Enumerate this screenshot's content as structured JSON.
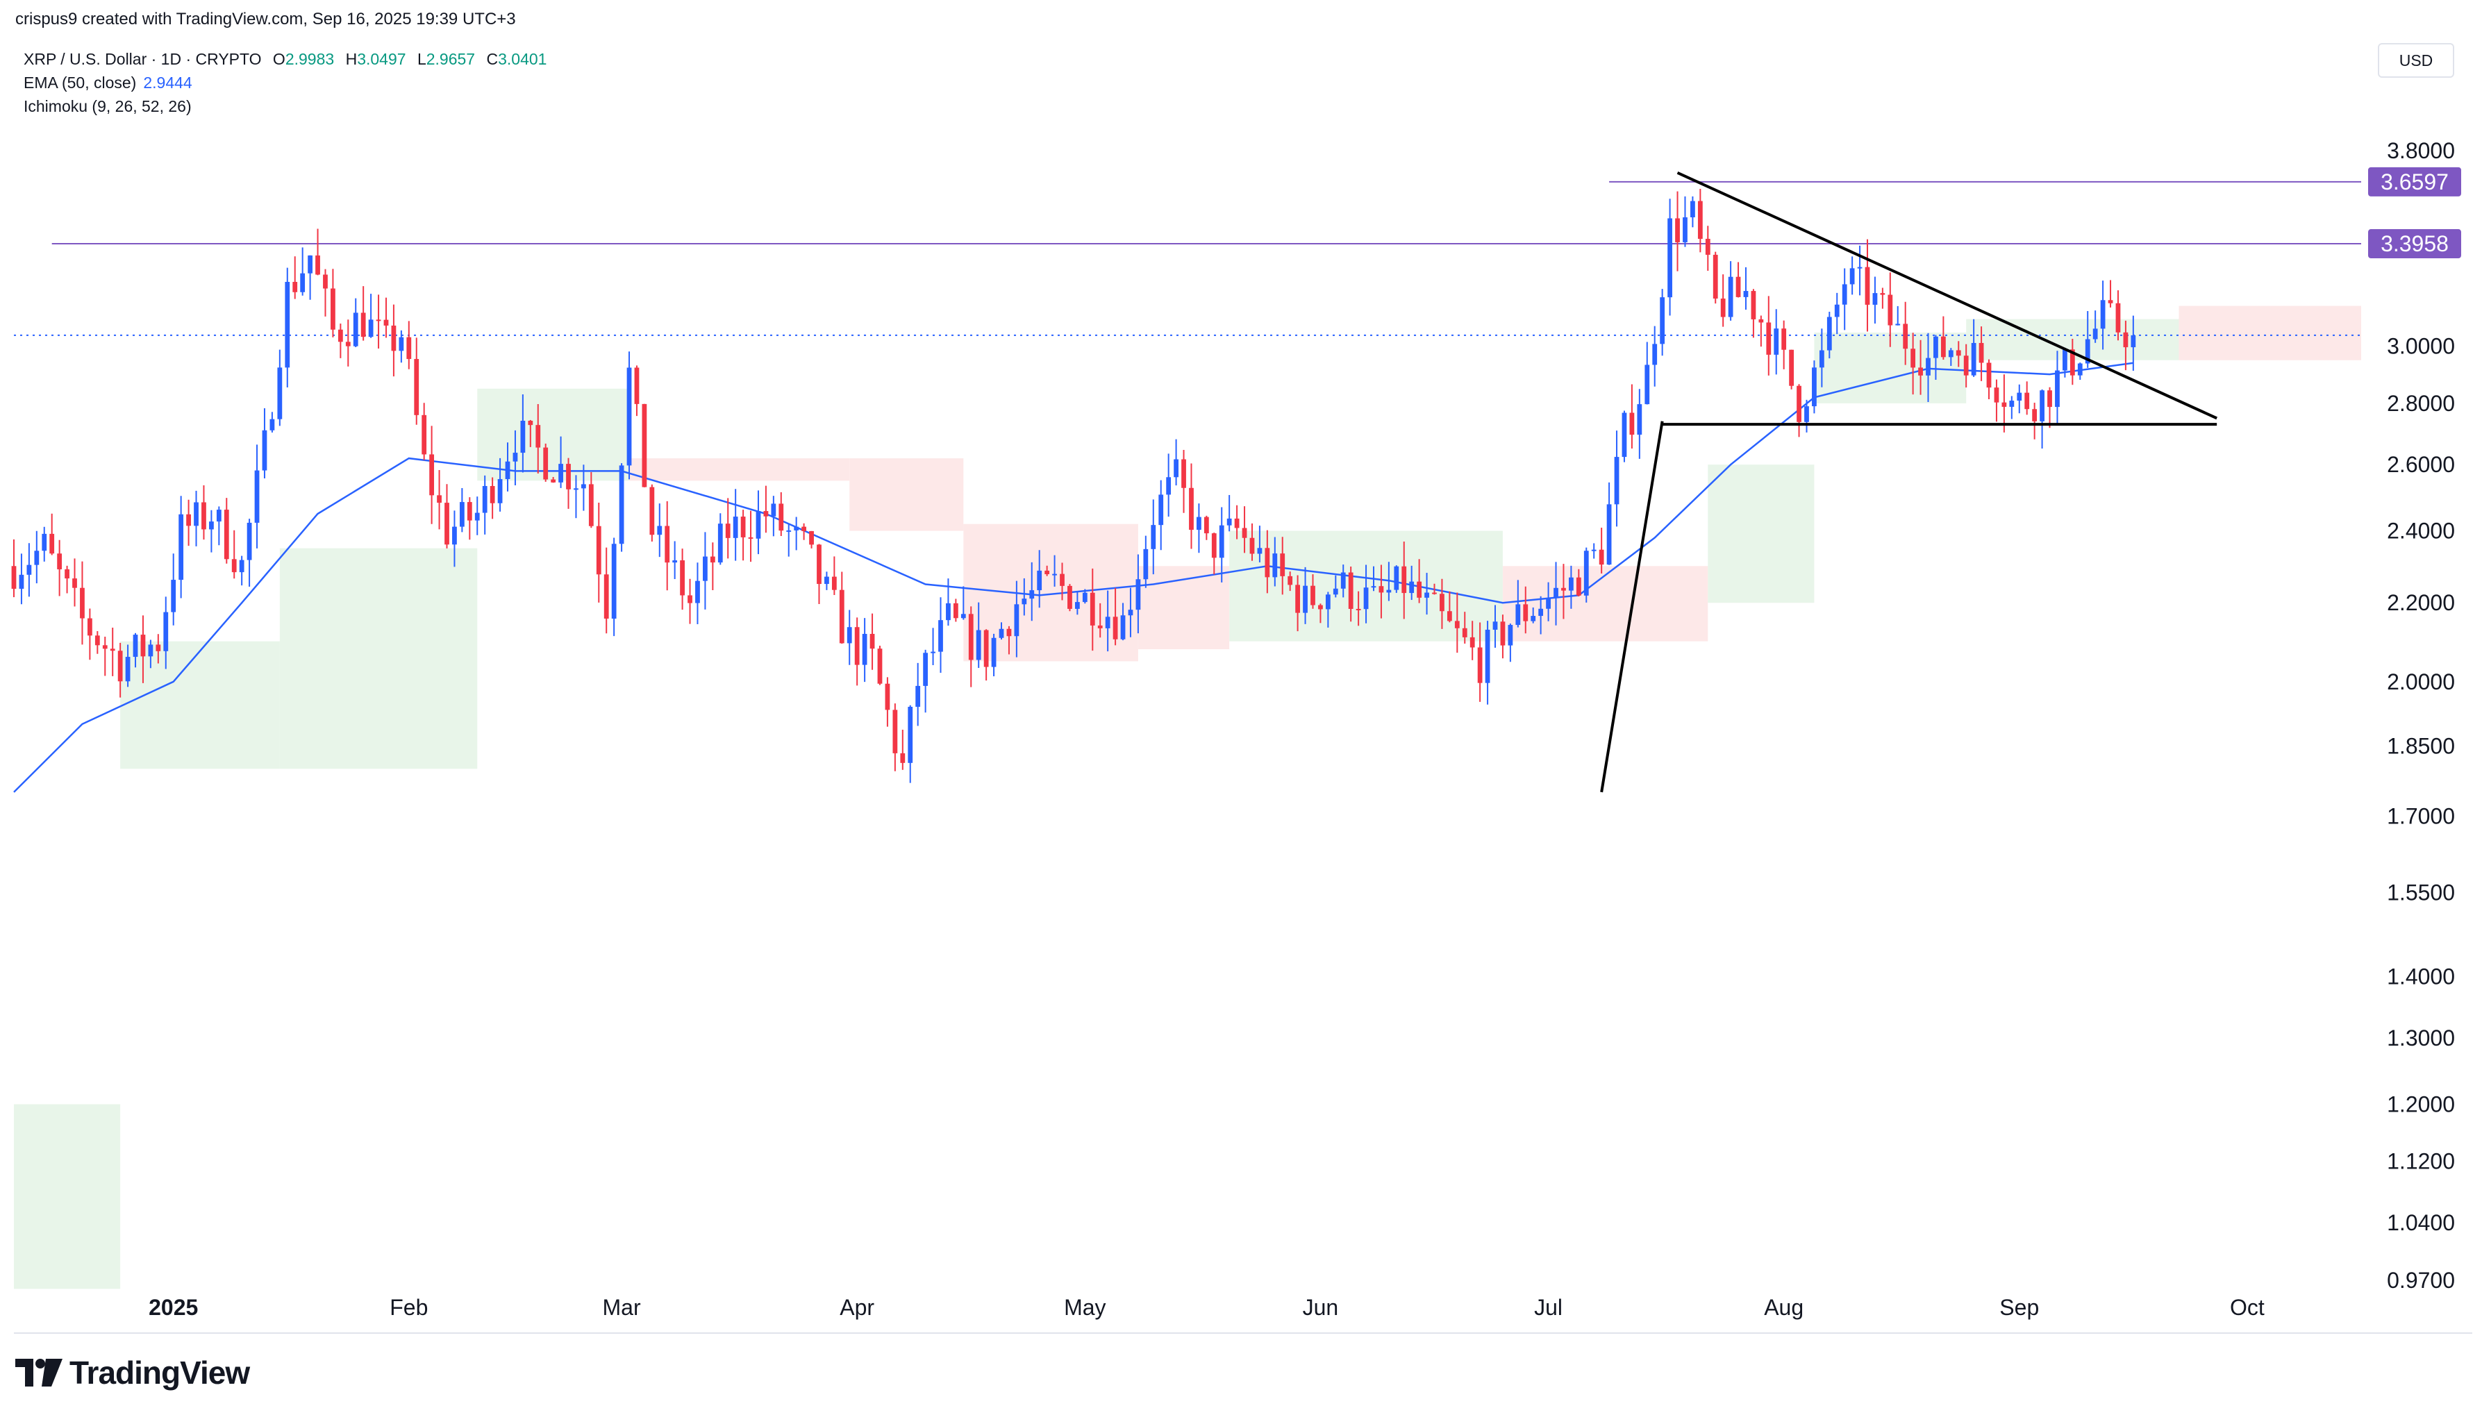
{
  "header": {
    "attribution": "crispus9 created with TradingView.com, Sep 16, 2025 19:39 UTC+3",
    "symbol": "XRP / U.S. Dollar · 1D · CRYPTO",
    "ohlc": [
      {
        "key": "O",
        "value": "2.9983"
      },
      {
        "key": "H",
        "value": "3.0497"
      },
      {
        "key": "L",
        "value": "2.9657"
      },
      {
        "key": "C",
        "value": "3.0401"
      }
    ],
    "ema_label": "EMA (50, close)",
    "ema_value": "2.9444",
    "ichimoku_label": "Ichimoku (9, 26, 52, 26)",
    "currency": "USD"
  },
  "brand": {
    "name": "TradingView",
    "icon": "tradingview-logo-icon"
  },
  "colors": {
    "up": "#2962ff",
    "down": "#f23645",
    "ema": "#2962ff",
    "cloud_bull": "#e8f5e9",
    "cloud_bear": "#fde8e8",
    "level_line": "#7e57c2",
    "trendline": "#000000"
  },
  "chart_data": {
    "type": "candlestick",
    "scale": "log",
    "ylim": [
      0.91,
      4.02
    ],
    "y_ticks": [
      "3.8000",
      "3.0000",
      "2.8000",
      "2.6000",
      "2.4000",
      "2.2000",
      "2.0000",
      "1.8500",
      "1.7000",
      "1.5500",
      "1.4000",
      "1.3000",
      "1.2000",
      "1.1200",
      "1.0400",
      "0.9700"
    ],
    "x_ticks": [
      "2025",
      "Feb",
      "Mar",
      "Apr",
      "May",
      "Jun",
      "Jul",
      "Aug",
      "Sep",
      "Oct"
    ],
    "x_range": [
      "2024-12-11",
      "2025-10-16"
    ],
    "horizontal_levels": [
      {
        "price": 3.6597,
        "label": "3.6597",
        "from": "2025-07-09"
      },
      {
        "price": 3.3958,
        "label": "3.3958",
        "from": "2024-12-16"
      }
    ],
    "current_price": 3.0401,
    "drawings": [
      {
        "name": "flagpole-line",
        "points": [
          [
            "2025-07-08",
            1.75
          ],
          [
            "2025-07-16",
            2.74
          ]
        ]
      },
      {
        "name": "triangle-upper-line",
        "points": [
          [
            "2025-07-18",
            3.7
          ],
          [
            "2025-09-27",
            2.75
          ]
        ]
      },
      {
        "name": "triangle-base-line",
        "points": [
          [
            "2025-07-16",
            2.73
          ],
          [
            "2025-09-27",
            2.73
          ]
        ]
      }
    ],
    "candle_anchors": [
      [
        "2024-12-11",
        2.3
      ],
      [
        "2024-12-15",
        2.35
      ],
      [
        "2024-12-20",
        2.15
      ],
      [
        "2024-12-25",
        2.05
      ],
      [
        "2024-12-30",
        2.1
      ],
      [
        "2025-01-02",
        2.4
      ],
      [
        "2025-01-06",
        2.45
      ],
      [
        "2025-01-10",
        2.3
      ],
      [
        "2025-01-13",
        2.65
      ],
      [
        "2025-01-16",
        3.2
      ],
      [
        "2025-01-19",
        3.35
      ],
      [
        "2025-01-22",
        3.05
      ],
      [
        "2025-01-26",
        3.1
      ],
      [
        "2025-01-29",
        3.0
      ],
      [
        "2025-01-31",
        3.05
      ],
      [
        "2025-02-03",
        2.6
      ],
      [
        "2025-02-06",
        2.4
      ],
      [
        "2025-02-10",
        2.45
      ],
      [
        "2025-02-15",
        2.7
      ],
      [
        "2025-02-20",
        2.6
      ],
      [
        "2025-02-24",
        2.55
      ],
      [
        "2025-02-27",
        2.2
      ],
      [
        "2025-03-02",
        2.9
      ],
      [
        "2025-03-05",
        2.4
      ],
      [
        "2025-03-10",
        2.2
      ],
      [
        "2025-03-15",
        2.4
      ],
      [
        "2025-03-20",
        2.45
      ],
      [
        "2025-03-25",
        2.35
      ],
      [
        "2025-03-31",
        2.1
      ],
      [
        "2025-04-03",
        2.05
      ],
      [
        "2025-04-07",
        1.8
      ],
      [
        "2025-04-09",
        2.0
      ],
      [
        "2025-04-13",
        2.15
      ],
      [
        "2025-04-18",
        2.07
      ],
      [
        "2025-04-22",
        2.2
      ],
      [
        "2025-04-27",
        2.25
      ],
      [
        "2025-05-02",
        2.2
      ],
      [
        "2025-05-06",
        2.15
      ],
      [
        "2025-05-10",
        2.45
      ],
      [
        "2025-05-13",
        2.55
      ],
      [
        "2025-05-17",
        2.35
      ],
      [
        "2025-05-21",
        2.4
      ],
      [
        "2025-05-25",
        2.3
      ],
      [
        "2025-05-30",
        2.2
      ],
      [
        "2025-06-03",
        2.25
      ],
      [
        "2025-06-08",
        2.2
      ],
      [
        "2025-06-12",
        2.25
      ],
      [
        "2025-06-17",
        2.15
      ],
      [
        "2025-06-22",
        2.05
      ],
      [
        "2025-06-26",
        2.15
      ],
      [
        "2025-06-30",
        2.2
      ],
      [
        "2025-07-04",
        2.25
      ],
      [
        "2025-07-08",
        2.35
      ],
      [
        "2025-07-11",
        2.7
      ],
      [
        "2025-07-14",
        2.9
      ],
      [
        "2025-07-17",
        3.45
      ],
      [
        "2025-07-20",
        3.5
      ],
      [
        "2025-07-23",
        3.15
      ],
      [
        "2025-07-27",
        3.2
      ],
      [
        "2025-07-31",
        3.0
      ],
      [
        "2025-08-03",
        2.8
      ],
      [
        "2025-08-06",
        2.95
      ],
      [
        "2025-08-09",
        3.25
      ],
      [
        "2025-08-12",
        3.2
      ],
      [
        "2025-08-16",
        3.05
      ],
      [
        "2025-08-20",
        2.95
      ],
      [
        "2025-08-23",
        3.0
      ],
      [
        "2025-08-27",
        2.95
      ],
      [
        "2025-08-31",
        2.8
      ],
      [
        "2025-09-04",
        2.82
      ],
      [
        "2025-09-08",
        2.95
      ],
      [
        "2025-09-12",
        3.1
      ],
      [
        "2025-09-16",
        3.04
      ]
    ],
    "ema_50": [
      [
        "2024-12-11",
        1.75
      ],
      [
        "2024-12-20",
        1.9
      ],
      [
        "2025-01-01",
        2.0
      ],
      [
        "2025-01-10",
        2.2
      ],
      [
        "2025-01-20",
        2.45
      ],
      [
        "2025-02-01",
        2.62
      ],
      [
        "2025-02-15",
        2.58
      ],
      [
        "2025-03-01",
        2.58
      ],
      [
        "2025-03-20",
        2.45
      ],
      [
        "2025-04-10",
        2.25
      ],
      [
        "2025-04-25",
        2.22
      ],
      [
        "2025-05-10",
        2.25
      ],
      [
        "2025-05-25",
        2.3
      ],
      [
        "2025-06-10",
        2.26
      ],
      [
        "2025-06-25",
        2.2
      ],
      [
        "2025-07-05",
        2.22
      ],
      [
        "2025-07-15",
        2.38
      ],
      [
        "2025-07-25",
        2.6
      ],
      [
        "2025-08-05",
        2.82
      ],
      [
        "2025-08-20",
        2.92
      ],
      [
        "2025-09-05",
        2.9
      ],
      [
        "2025-09-16",
        2.94
      ]
    ],
    "ichimoku_cloud": [
      {
        "from": "2024-12-11",
        "to": "2024-12-25",
        "top": 1.2,
        "bottom": 0.96,
        "bias": "bull"
      },
      {
        "from": "2024-12-25",
        "to": "2025-01-15",
        "top": 2.1,
        "bottom": 1.8,
        "bias": "bull"
      },
      {
        "from": "2025-01-15",
        "to": "2025-02-10",
        "top": 2.35,
        "bottom": 1.8,
        "bias": "bull"
      },
      {
        "from": "2025-02-10",
        "to": "2025-03-02",
        "top": 2.85,
        "bottom": 2.55,
        "bias": "bull"
      },
      {
        "from": "2025-03-02",
        "to": "2025-03-31",
        "top": 2.62,
        "bottom": 2.55,
        "bias": "bear"
      },
      {
        "from": "2025-03-31",
        "to": "2025-04-15",
        "top": 2.62,
        "bottom": 2.4,
        "bias": "bear"
      },
      {
        "from": "2025-04-15",
        "to": "2025-05-08",
        "top": 2.42,
        "bottom": 2.05,
        "bias": "bear"
      },
      {
        "from": "2025-05-08",
        "to": "2025-05-20",
        "top": 2.3,
        "bottom": 2.08,
        "bias": "bear"
      },
      {
        "from": "2025-05-20",
        "to": "2025-06-25",
        "top": 2.4,
        "bottom": 2.1,
        "bias": "bull"
      },
      {
        "from": "2025-06-25",
        "to": "2025-07-22",
        "top": 2.3,
        "bottom": 2.1,
        "bias": "bear"
      },
      {
        "from": "2025-07-22",
        "to": "2025-08-05",
        "top": 2.6,
        "bottom": 2.2,
        "bias": "bull"
      },
      {
        "from": "2025-08-05",
        "to": "2025-08-25",
        "top": 3.05,
        "bottom": 2.8,
        "bias": "bull"
      },
      {
        "from": "2025-08-25",
        "to": "2025-09-22",
        "top": 3.1,
        "bottom": 2.95,
        "bias": "bull"
      },
      {
        "from": "2025-09-22",
        "to": "2025-10-16",
        "top": 3.15,
        "bottom": 2.95,
        "bias": "bear"
      }
    ]
  }
}
